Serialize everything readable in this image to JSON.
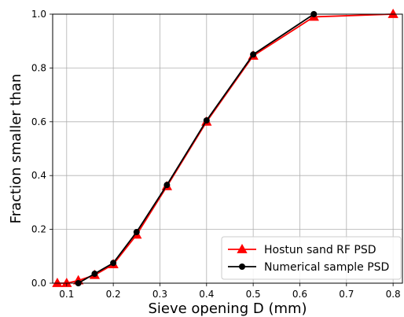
{
  "chart_data": {
    "type": "line",
    "title": "",
    "xlabel": "Sieve opening D (mm)",
    "ylabel": "Fraction smaller than",
    "xlim": [
      0.07,
      0.82
    ],
    "ylim": [
      0.0,
      1.0
    ],
    "x_ticks": [
      "0.1",
      "0.2",
      "0.3",
      "0.4",
      "0.5",
      "0.6",
      "0.7",
      "0.8"
    ],
    "y_ticks": [
      "0.0",
      "0.2",
      "0.4",
      "0.6",
      "0.8",
      "1.0"
    ],
    "grid": true,
    "legend_position": "lower-right",
    "series": [
      {
        "name": "Hostun sand RF PSD",
        "color": "#ff0000",
        "marker": "triangle",
        "x": [
          0.08,
          0.1,
          0.125,
          0.16,
          0.2,
          0.25,
          0.315,
          0.4,
          0.5,
          0.63,
          0.8
        ],
        "y": [
          0.0,
          0.0,
          0.01,
          0.03,
          0.07,
          0.18,
          0.36,
          0.6,
          0.845,
          0.99,
          1.0
        ]
      },
      {
        "name": "Numerical sample PSD",
        "color": "#000000",
        "marker": "circle",
        "x": [
          0.125,
          0.16,
          0.2,
          0.25,
          0.315,
          0.4,
          0.5,
          0.63
        ],
        "y": [
          0.0,
          0.035,
          0.075,
          0.19,
          0.365,
          0.605,
          0.85,
          1.0
        ]
      }
    ]
  }
}
